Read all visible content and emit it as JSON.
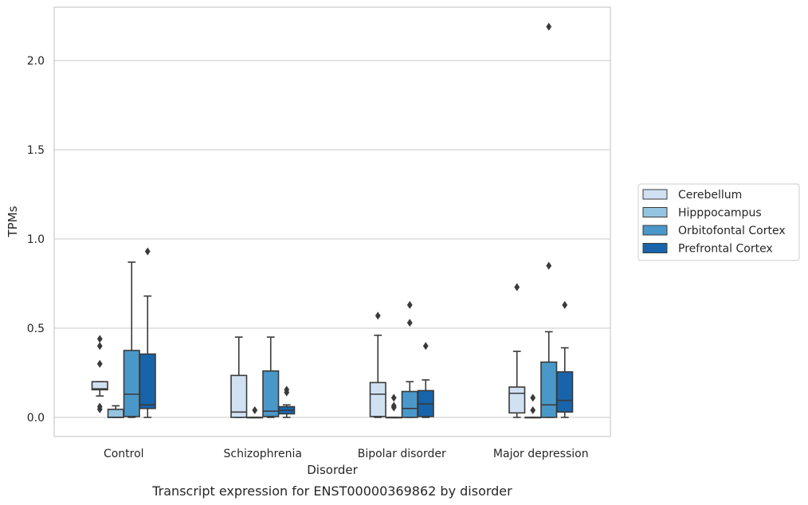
{
  "chart_data": {
    "type": "box",
    "title": "",
    "caption": "Transcript expression for ENST00000369862 by disorder",
    "xlabel": "Disorder",
    "ylabel": "TPMs",
    "ylim": [
      -0.11,
      2.31
    ],
    "yticks": [
      "0.0",
      "0.5",
      "1.0",
      "1.5",
      "2.0"
    ],
    "ytick_values": [
      0.0,
      0.5,
      1.0,
      1.5,
      2.0
    ],
    "grid": "horizontal",
    "legend_position": "right",
    "categories": [
      "Control",
      "Schizophrenia",
      "Bipolar disorder",
      "Major depression"
    ],
    "series": [
      {
        "name": "Cerebellum",
        "color": "#d0e1f2",
        "boxes": [
          {
            "q1": 0.155,
            "median": 0.16,
            "q3": 0.2,
            "whislo": 0.12,
            "whishi": 0.2,
            "fliers": [
              0.44,
              0.4,
              0.3,
              0.06,
              0.045
            ]
          },
          {
            "q1": 0.0,
            "median": 0.03,
            "q3": 0.235,
            "whislo": 0.0,
            "whishi": 0.45,
            "fliers": []
          },
          {
            "q1": 0.005,
            "median": 0.13,
            "q3": 0.195,
            "whislo": 0.0,
            "whishi": 0.46,
            "fliers": [
              0.57
            ]
          },
          {
            "q1": 0.025,
            "median": 0.135,
            "q3": 0.17,
            "whislo": 0.0,
            "whishi": 0.37,
            "fliers": [
              0.73
            ]
          }
        ]
      },
      {
        "name": "Hipppocampus",
        "color": "#94c4df",
        "boxes": [
          {
            "q1": 0.0,
            "median": 0.0,
            "q3": 0.045,
            "whislo": 0.0,
            "whishi": 0.065,
            "fliers": []
          },
          {
            "q1": 0.0,
            "median": 0.0,
            "q3": 0.0,
            "whislo": 0.0,
            "whishi": 0.0,
            "fliers": [
              0.04
            ]
          },
          {
            "q1": 0.0,
            "median": 0.0,
            "q3": 0.0,
            "whislo": 0.0,
            "whishi": 0.0,
            "fliers": [
              0.11,
              0.065,
              0.055
            ]
          },
          {
            "q1": 0.0,
            "median": 0.0,
            "q3": 0.0,
            "whislo": 0.0,
            "whishi": 0.0,
            "fliers": [
              0.11,
              0.04
            ]
          }
        ]
      },
      {
        "name": "Orbitofontal Cortex",
        "color": "#4a98c9",
        "boxes": [
          {
            "q1": 0.005,
            "median": 0.13,
            "q3": 0.375,
            "whislo": 0.0,
            "whishi": 0.87,
            "fliers": []
          },
          {
            "q1": 0.005,
            "median": 0.035,
            "q3": 0.26,
            "whislo": 0.0,
            "whishi": 0.45,
            "fliers": []
          },
          {
            "q1": 0.0,
            "median": 0.05,
            "q3": 0.145,
            "whislo": 0.0,
            "whishi": 0.2,
            "fliers": [
              0.63,
              0.53
            ]
          },
          {
            "q1": 0.0,
            "median": 0.07,
            "q3": 0.31,
            "whislo": 0.0,
            "whishi": 0.48,
            "fliers": [
              2.19,
              0.85
            ]
          }
        ]
      },
      {
        "name": "Prefrontal Cortex",
        "color": "#1764ab",
        "boxes": [
          {
            "q1": 0.05,
            "median": 0.07,
            "q3": 0.355,
            "whislo": 0.0,
            "whishi": 0.68,
            "fliers": [
              0.93
            ]
          },
          {
            "q1": 0.02,
            "median": 0.04,
            "q3": 0.06,
            "whislo": 0.0,
            "whishi": 0.07,
            "fliers": [
              0.155,
              0.14
            ]
          },
          {
            "q1": 0.005,
            "median": 0.075,
            "q3": 0.15,
            "whislo": 0.0,
            "whishi": 0.21,
            "fliers": [
              0.4
            ]
          },
          {
            "q1": 0.03,
            "median": 0.095,
            "q3": 0.255,
            "whislo": 0.0,
            "whishi": 0.39,
            "fliers": [
              0.63
            ]
          }
        ]
      }
    ]
  }
}
